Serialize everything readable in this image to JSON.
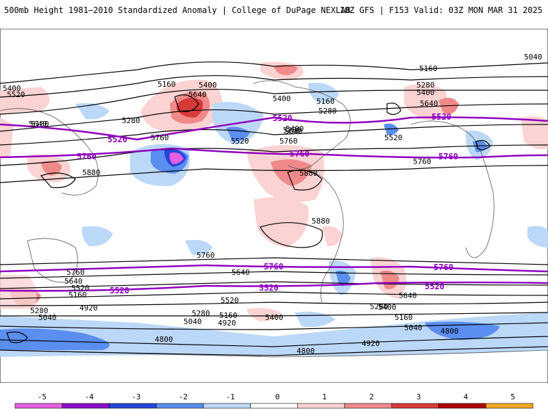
{
  "header": {
    "title": "500mb Height 1981–2010 Standardized Anomaly | College of DuPage NEXLAB",
    "run_info": "18Z GFS | F153 Valid: 03Z MON MAR 31 2025"
  },
  "map": {
    "contour_labels": {
      "black": [
        "5040",
        "5160",
        "5400",
        "5520",
        "5400",
        "5160",
        "5280",
        "5640",
        "5280",
        "5400",
        "5160",
        "5280",
        "5400",
        "5640",
        "5520",
        "5760",
        "5880",
        "5520",
        "5400",
        "5160",
        "5280",
        "5640",
        "5760",
        "5640",
        "5760",
        "5880",
        "5880",
        "5760",
        "5640",
        "5760",
        "5520",
        "5640",
        "5160",
        "5280",
        "5040",
        "4920",
        "4800",
        "5520",
        "5280",
        "5040",
        "5160",
        "4920",
        "5400",
        "5280",
        "5400",
        "5160",
        "5040",
        "4920",
        "4800",
        "4800",
        "5640"
      ],
      "purple": [
        "5520",
        "5520",
        "5520",
        "5760",
        "5760",
        "5760",
        "5760",
        "5760",
        "5520",
        "5520",
        "5520"
      ]
    },
    "anomaly_colors": {
      "neg5": "#e85ee0",
      "neg4": "#8a10c8",
      "neg3": "#2646d8",
      "neg2": "#5a8ef0",
      "neg1": "#bcd8f8",
      "zero": "#ffffff",
      "pos1": "#fbd3d3",
      "pos2": "#f08a8a",
      "pos3": "#d83a3a",
      "pos4": "#b00000",
      "pos5": "#f5a623"
    },
    "contour_color": "#000000",
    "reference_contour_color": "#9000c0"
  },
  "colorbar": {
    "ticks": [
      "-5",
      "-4",
      "-3",
      "-2",
      "-1",
      "0",
      "1",
      "2",
      "3",
      "4",
      "5"
    ],
    "colors": [
      "#e85ee0",
      "#8a10c8",
      "#2646d8",
      "#5a8ef0",
      "#bcd8f8",
      "#ffffff",
      "#fbd3d3",
      "#f08a8a",
      "#d83a3a",
      "#b00000",
      "#f5a623"
    ]
  }
}
